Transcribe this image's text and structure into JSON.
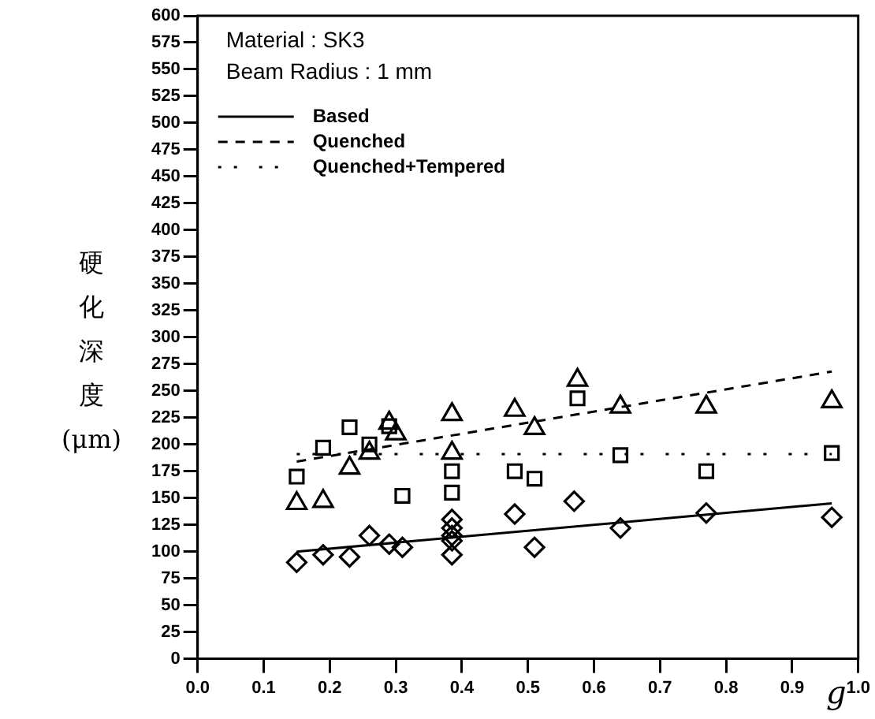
{
  "chart_data": {
    "type": "scatter",
    "xlabel": "g",
    "ylabel": "硬化深度(μm)",
    "annotations": [
      "Material : SK3",
      "Beam Radius : 1 mm"
    ],
    "xlim": [
      0,
      1
    ],
    "ylim": [
      0,
      600
    ],
    "xticks": [
      {
        "value": 0,
        "label": "0.0"
      },
      {
        "value": 0.1,
        "label": "0.1"
      },
      {
        "value": 0.2,
        "label": "0.2"
      },
      {
        "value": 0.3,
        "label": "0.3"
      },
      {
        "value": 0.4,
        "label": "0.4"
      },
      {
        "value": 0.5,
        "label": "0.5"
      },
      {
        "value": 0.6,
        "label": "0.6"
      },
      {
        "value": 0.7,
        "label": "0.7"
      },
      {
        "value": 0.8,
        "label": "0.8"
      },
      {
        "value": 0.9,
        "label": "0.9"
      },
      {
        "value": 1,
        "label": "1.0"
      }
    ],
    "yticks": [
      0,
      25,
      50,
      75,
      100,
      125,
      150,
      175,
      200,
      225,
      250,
      275,
      300,
      325,
      350,
      375,
      400,
      425,
      450,
      475,
      500,
      525,
      550,
      575,
      600
    ],
    "grid": false,
    "legend": "top left",
    "series": [
      {
        "marker": "diamond",
        "color": "#000000",
        "x": [
          0.15,
          0.19,
          0.23,
          0.26,
          0.29,
          0.31,
          0.385,
          0.385,
          0.385,
          0.385,
          0.385,
          0.48,
          0.51,
          0.57,
          0.64,
          0.77,
          0.96
        ],
        "values": [
          90,
          97,
          95,
          115,
          107,
          104,
          130,
          122,
          115,
          110,
          97,
          135,
          104,
          147,
          122,
          136,
          132
        ]
      },
      {
        "marker": "square",
        "color": "#000000",
        "x": [
          0.15,
          0.19,
          0.23,
          0.26,
          0.29,
          0.31,
          0.385,
          0.385,
          0.48,
          0.51,
          0.575,
          0.64,
          0.77,
          0.96
        ],
        "values": [
          170,
          197,
          216,
          200,
          217,
          152,
          175,
          155,
          175,
          168,
          243,
          190,
          175,
          192
        ]
      },
      {
        "marker": "triangle",
        "color": "#000000",
        "x": [
          0.15,
          0.19,
          0.23,
          0.26,
          0.29,
          0.3,
          0.385,
          0.385,
          0.48,
          0.51,
          0.575,
          0.64,
          0.77,
          0.96
        ],
        "values": [
          145,
          147,
          178,
          192,
          220,
          210,
          228,
          192,
          232,
          215,
          260,
          235,
          235,
          240
        ]
      },
      {
        "type": "line",
        "name": "Based",
        "line_style": "solid",
        "marker": "none",
        "color": "#000000",
        "x": [
          0.15,
          0.96
        ],
        "values": [
          100,
          145
        ]
      },
      {
        "type": "line",
        "name": "Quenched",
        "line_style": "dashed",
        "marker": "none",
        "color": "#000000",
        "x": [
          0.15,
          0.96
        ],
        "values": [
          184,
          268
        ]
      },
      {
        "type": "line",
        "name": "Quenched+Tempered",
        "line_style": "dotted",
        "marker": "none",
        "color": "#000000",
        "x": [
          0.15,
          0.96
        ],
        "values": [
          191,
          191
        ]
      }
    ]
  }
}
